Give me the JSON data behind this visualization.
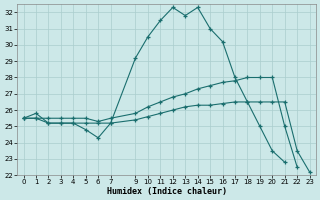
{
  "xlabel": "Humidex (Indice chaleur)",
  "bg_color": "#cce8e8",
  "grid_color": "#aacece",
  "line_color": "#1a6e6e",
  "xlim": [
    -0.5,
    23.5
  ],
  "ylim": [
    22,
    32.5
  ],
  "yticks": [
    22,
    23,
    24,
    25,
    26,
    27,
    28,
    29,
    30,
    31,
    32
  ],
  "xticks": [
    0,
    1,
    2,
    3,
    4,
    5,
    6,
    7,
    9,
    10,
    11,
    12,
    13,
    14,
    15,
    16,
    17,
    18,
    19,
    20,
    21,
    22,
    23
  ],
  "series": [
    {
      "x": [
        0,
        1,
        2,
        3,
        4,
        5,
        6,
        7,
        9,
        10,
        11,
        12,
        13,
        14,
        15,
        16,
        17,
        18,
        19,
        20,
        21
      ],
      "y": [
        25.5,
        25.8,
        25.2,
        25.2,
        25.2,
        24.8,
        24.3,
        25.2,
        29.2,
        30.5,
        31.5,
        32.3,
        31.8,
        32.3,
        31.0,
        30.2,
        28.0,
        26.5,
        25.0,
        23.5,
        22.8
      ]
    },
    {
      "x": [
        0,
        1,
        2,
        3,
        4,
        5,
        6,
        7,
        9,
        10,
        11,
        12,
        13,
        14,
        15,
        16,
        17,
        18,
        19,
        20,
        21,
        22
      ],
      "y": [
        25.5,
        25.5,
        25.5,
        25.5,
        25.5,
        25.5,
        25.3,
        25.5,
        25.8,
        26.2,
        26.5,
        26.8,
        27.0,
        27.3,
        27.5,
        27.7,
        27.8,
        28.0,
        28.0,
        28.0,
        25.0,
        22.5
      ]
    },
    {
      "x": [
        0,
        1,
        2,
        3,
        4,
        5,
        6,
        7,
        9,
        10,
        11,
        12,
        13,
        14,
        15,
        16,
        17,
        18,
        19,
        20,
        21,
        22,
        23
      ],
      "y": [
        25.5,
        25.5,
        25.2,
        25.2,
        25.2,
        25.2,
        25.2,
        25.2,
        25.4,
        25.6,
        25.8,
        26.0,
        26.2,
        26.3,
        26.3,
        26.4,
        26.5,
        26.5,
        26.5,
        26.5,
        26.5,
        23.5,
        22.2
      ]
    }
  ]
}
